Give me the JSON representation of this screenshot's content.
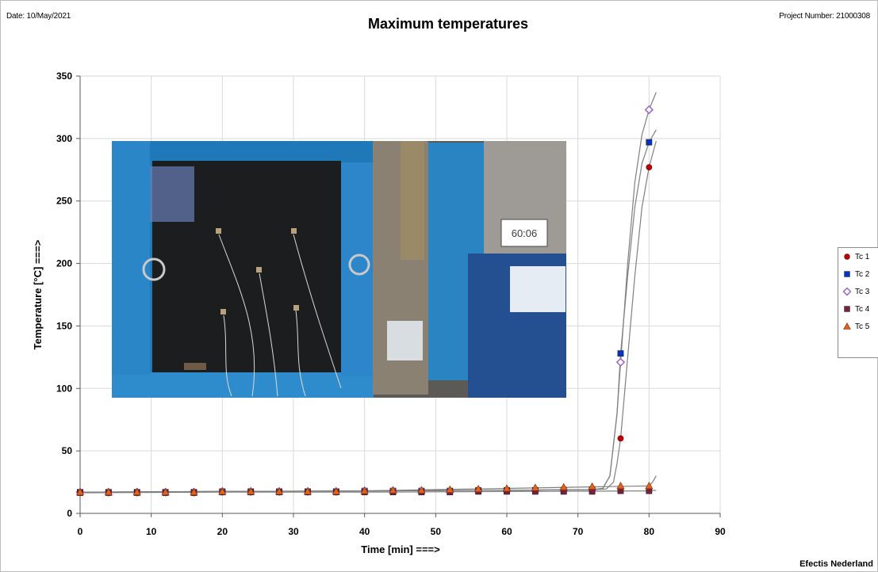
{
  "header": {
    "date": "Date: 10/May/2021",
    "project": "Project Number: 21000308"
  },
  "footer": {
    "organization": "Efectis Nederland"
  },
  "photo": {
    "clock_display": "60:06"
  },
  "chart_data": {
    "type": "line",
    "title": "Maximum temperatures",
    "xlabel": "Time [min] ===>",
    "ylabel": "Temperature [°C] ===>",
    "xlim": [
      0,
      90
    ],
    "ylim": [
      0,
      350
    ],
    "xticks": [
      0,
      10,
      20,
      30,
      40,
      50,
      60,
      70,
      80,
      90
    ],
    "yticks": [
      0,
      50,
      100,
      150,
      200,
      250,
      300,
      350
    ],
    "grid": true,
    "legend_position": "right",
    "markers_x": [
      0,
      4,
      8,
      12,
      16,
      20,
      24,
      28,
      32,
      36,
      40,
      44,
      48,
      52,
      56,
      60,
      64,
      68,
      72,
      76,
      80
    ],
    "series": [
      {
        "name": "Tc 1",
        "marker": "circle",
        "color": "#c00000",
        "line": [
          [
            0,
            17
          ],
          [
            20,
            17.5
          ],
          [
            40,
            18
          ],
          [
            60,
            18.5
          ],
          [
            72,
            19
          ],
          [
            74,
            19.5
          ],
          [
            75,
            25
          ],
          [
            75.5,
            40
          ],
          [
            76,
            60
          ],
          [
            77,
            125
          ],
          [
            78,
            190
          ],
          [
            79,
            245
          ],
          [
            80,
            277
          ],
          [
            81,
            298
          ]
        ],
        "points": [
          [
            0,
            17
          ],
          [
            4,
            17
          ],
          [
            8,
            17
          ],
          [
            12,
            17
          ],
          [
            16,
            17
          ],
          [
            20,
            17.5
          ],
          [
            24,
            17.5
          ],
          [
            28,
            17.5
          ],
          [
            32,
            17.5
          ],
          [
            36,
            17.5
          ],
          [
            40,
            18
          ],
          [
            44,
            18
          ],
          [
            48,
            18
          ],
          [
            52,
            18
          ],
          [
            56,
            18.5
          ],
          [
            60,
            18.5
          ],
          [
            64,
            18.5
          ],
          [
            68,
            18.5
          ],
          [
            72,
            19
          ],
          [
            76,
            60
          ],
          [
            80,
            277
          ]
        ]
      },
      {
        "name": "Tc 2",
        "marker": "square",
        "color": "#0033cc",
        "line": [
          [
            0,
            17
          ],
          [
            20,
            17.5
          ],
          [
            40,
            18
          ],
          [
            60,
            18.5
          ],
          [
            72,
            19
          ],
          [
            73.5,
            20
          ],
          [
            74.5,
            30
          ],
          [
            75.5,
            80
          ],
          [
            76,
            128
          ],
          [
            77,
            190
          ],
          [
            78,
            245
          ],
          [
            79,
            280
          ],
          [
            80,
            297
          ],
          [
            81,
            307
          ]
        ],
        "points": [
          [
            0,
            17
          ],
          [
            4,
            17
          ],
          [
            8,
            17
          ],
          [
            12,
            17
          ],
          [
            16,
            17
          ],
          [
            20,
            17.5
          ],
          [
            24,
            17.5
          ],
          [
            28,
            17.5
          ],
          [
            32,
            17.5
          ],
          [
            36,
            17.5
          ],
          [
            40,
            18
          ],
          [
            44,
            18
          ],
          [
            48,
            18
          ],
          [
            52,
            18
          ],
          [
            56,
            18.5
          ],
          [
            60,
            18.5
          ],
          [
            64,
            18.5
          ],
          [
            68,
            18.5
          ],
          [
            72,
            19
          ],
          [
            76,
            128
          ],
          [
            80,
            297
          ]
        ]
      },
      {
        "name": "Tc 3",
        "marker": "diamond",
        "color": "#9966cc",
        "line": [
          [
            0,
            17
          ],
          [
            20,
            17.5
          ],
          [
            40,
            18
          ],
          [
            60,
            18.5
          ],
          [
            72,
            19
          ],
          [
            73.5,
            20
          ],
          [
            74.5,
            30
          ],
          [
            75.5,
            80
          ],
          [
            76,
            121
          ],
          [
            77,
            200
          ],
          [
            78,
            265
          ],
          [
            79,
            303
          ],
          [
            80,
            323
          ],
          [
            81,
            337
          ]
        ],
        "points": [
          [
            0,
            17
          ],
          [
            4,
            17
          ],
          [
            8,
            17
          ],
          [
            12,
            17
          ],
          [
            16,
            17
          ],
          [
            20,
            17.5
          ],
          [
            24,
            17.5
          ],
          [
            28,
            17.5
          ],
          [
            32,
            17.5
          ],
          [
            36,
            17.5
          ],
          [
            40,
            18
          ],
          [
            44,
            18
          ],
          [
            48,
            18
          ],
          [
            52,
            18
          ],
          [
            56,
            18.5
          ],
          [
            60,
            18.5
          ],
          [
            64,
            18.5
          ],
          [
            68,
            18.5
          ],
          [
            72,
            19
          ],
          [
            76,
            121
          ],
          [
            80,
            323
          ]
        ]
      },
      {
        "name": "Tc 4",
        "marker": "square",
        "color": "#7b1f3a",
        "line": [
          [
            0,
            16.5
          ],
          [
            20,
            17
          ],
          [
            40,
            17
          ],
          [
            60,
            17.5
          ],
          [
            80,
            18
          ],
          [
            81,
            18.5
          ]
        ],
        "points": [
          [
            0,
            16.5
          ],
          [
            4,
            16.5
          ],
          [
            8,
            16.5
          ],
          [
            12,
            16.5
          ],
          [
            16,
            16.5
          ],
          [
            20,
            17
          ],
          [
            24,
            17
          ],
          [
            28,
            17
          ],
          [
            32,
            17
          ],
          [
            36,
            17
          ],
          [
            40,
            17
          ],
          [
            44,
            17
          ],
          [
            48,
            17
          ],
          [
            52,
            17
          ],
          [
            56,
            17.5
          ],
          [
            60,
            17.5
          ],
          [
            64,
            17.5
          ],
          [
            68,
            17.5
          ],
          [
            72,
            17.5
          ],
          [
            76,
            18
          ],
          [
            80,
            18
          ]
        ]
      },
      {
        "name": "Tc 5",
        "marker": "triangle",
        "color": "#e2611b",
        "line": [
          [
            0,
            17
          ],
          [
            20,
            17.5
          ],
          [
            40,
            18
          ],
          [
            50,
            19
          ],
          [
            60,
            20
          ],
          [
            70,
            21
          ],
          [
            80,
            22
          ],
          [
            80.5,
            25
          ],
          [
            81,
            30
          ]
        ],
        "points": [
          [
            0,
            17
          ],
          [
            4,
            17
          ],
          [
            8,
            17
          ],
          [
            12,
            17
          ],
          [
            16,
            17
          ],
          [
            20,
            17.5
          ],
          [
            24,
            17.5
          ],
          [
            28,
            17.5
          ],
          [
            32,
            17.5
          ],
          [
            36,
            17.5
          ],
          [
            40,
            18
          ],
          [
            44,
            18.5
          ],
          [
            48,
            18.5
          ],
          [
            52,
            19
          ],
          [
            56,
            19.5
          ],
          [
            60,
            20
          ],
          [
            64,
            20.5
          ],
          [
            68,
            21
          ],
          [
            72,
            21.5
          ],
          [
            76,
            22
          ],
          [
            80,
            22
          ]
        ]
      }
    ]
  }
}
